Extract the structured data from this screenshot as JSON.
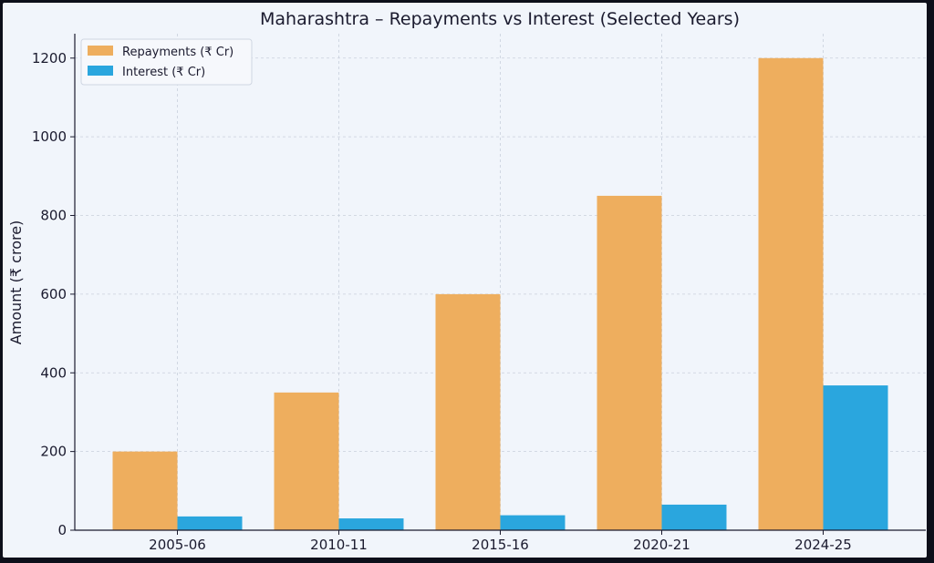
{
  "chart_data": {
    "type": "bar",
    "title": "Maharashtra – Repayments vs Interest (Selected Years)",
    "xlabel": "",
    "ylabel": "Amount (₹ crore)",
    "categories": [
      "2005-06",
      "2010-11",
      "2015-16",
      "2020-21",
      "2024-25"
    ],
    "series": [
      {
        "name": "Repayments (₹ Cr)",
        "values": [
          200,
          350,
          600,
          850,
          1200
        ],
        "color": "#eeae5e"
      },
      {
        "name": "Interest (₹ Cr)",
        "values": [
          35,
          30,
          38,
          65,
          368
        ],
        "color": "#2aa6de"
      }
    ],
    "yticks": [
      0,
      200,
      400,
      600,
      800,
      1000,
      1200
    ],
    "ylim": [
      0,
      1262
    ],
    "grid": true,
    "legend_position": "top-left"
  }
}
